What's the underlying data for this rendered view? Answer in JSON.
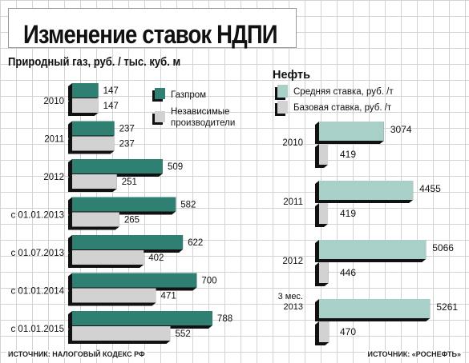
{
  "title": "Изменение ставок НДПИ",
  "colors": {
    "gazprom": "#2f8072",
    "independent": "#d2d2d2",
    "oil_avg": "#a9d0c8",
    "oil_base": "#d2d2d2",
    "shadow": "#111111"
  },
  "chart_data": [
    {
      "type": "bar",
      "orientation": "horizontal",
      "title": "Природный газ, руб. / тыс. куб. м",
      "categories": [
        "2010",
        "2011",
        "2012",
        "с 01.01.2013",
        "с 01.07.2013",
        "с 01.01.2014",
        "с 01.01.2015"
      ],
      "series": [
        {
          "name": "Газпром",
          "values": [
            147,
            237,
            509,
            582,
            622,
            700,
            788
          ]
        },
        {
          "name": "Независимые производители",
          "values": [
            147,
            237,
            251,
            265,
            402,
            471,
            552
          ]
        }
      ],
      "legend": "top-right",
      "source": "ИСТОЧНИК: НАЛОГОВЫЙ КОДЕКС РФ"
    },
    {
      "type": "bar",
      "orientation": "horizontal",
      "title": "Нефть",
      "categories": [
        "2010",
        "2011",
        "2012",
        "3 мес. 2013"
      ],
      "series": [
        {
          "name": "Средняя ставка, руб. /т",
          "values": [
            3074,
            4455,
            5066,
            5261
          ]
        },
        {
          "name": "Базовая ставка, руб. /т",
          "values": [
            419,
            419,
            446,
            470
          ]
        }
      ],
      "legend": "top",
      "source": "ИСТОЧНИК: «РОСНЕФТЬ»"
    }
  ]
}
